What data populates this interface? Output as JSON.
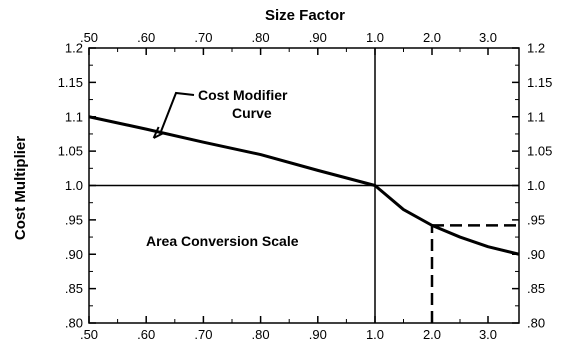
{
  "chart_data": {
    "type": "line",
    "title": "",
    "xlabel": "Size Factor",
    "ylabel": "Cost Multiplier",
    "x_axis": {
      "scale": "piecewise",
      "segments": [
        {
          "from": 0.5,
          "to": 1.0
        },
        {
          "from": 1.0,
          "to": 3.5,
          "compressed": true
        }
      ],
      "tick_labels": [
        ".50",
        ".60",
        ".70",
        ".80",
        ".90",
        "1.0",
        "2.0",
        "3.0"
      ],
      "tick_values": [
        0.5,
        0.6,
        0.7,
        0.8,
        0.9,
        1.0,
        2.0,
        3.0
      ],
      "range": [
        0.5,
        3.5
      ]
    },
    "y_axis": {
      "tick_labels": [
        ".80",
        ".85",
        ".90",
        ".95",
        "1.0",
        "1.05",
        "1.1",
        "1.15",
        "1.2"
      ],
      "tick_values": [
        0.8,
        0.85,
        0.9,
        0.95,
        1.0,
        1.05,
        1.1,
        1.15,
        1.2
      ],
      "range": [
        0.8,
        1.2
      ]
    },
    "grid": false,
    "series": [
      {
        "values_x": [
          0.5,
          0.6,
          0.7,
          0.8,
          0.9,
          1.0,
          1.5,
          2.0,
          2.5,
          3.0,
          3.5
        ],
        "values_y": [
          1.1,
          1.082,
          1.063,
          1.045,
          1.022,
          1.0,
          0.965,
          0.942,
          0.925,
          0.911,
          0.9
        ]
      }
    ],
    "reference_lines": [
      {
        "orientation": "horizontal",
        "y": 1.0,
        "style": "solid"
      },
      {
        "orientation": "vertical",
        "x": 1.0,
        "style": "solid"
      },
      {
        "orientation": "vertical",
        "x": 2.0,
        "y_from": 0.8,
        "y_to": 0.942,
        "style": "dashed"
      },
      {
        "orientation": "horizontal",
        "y": 0.942,
        "x_from": 2.0,
        "x_to": 3.5,
        "style": "dashed"
      }
    ],
    "annotations": [
      {
        "text_line1": "Cost Modifier",
        "text_line2": "Curve",
        "points_to_x": 0.62,
        "points_to_y": 1.072
      },
      {
        "text": "Area Conversion Scale",
        "at_x": 0.75,
        "at_y": 0.935
      }
    ]
  }
}
